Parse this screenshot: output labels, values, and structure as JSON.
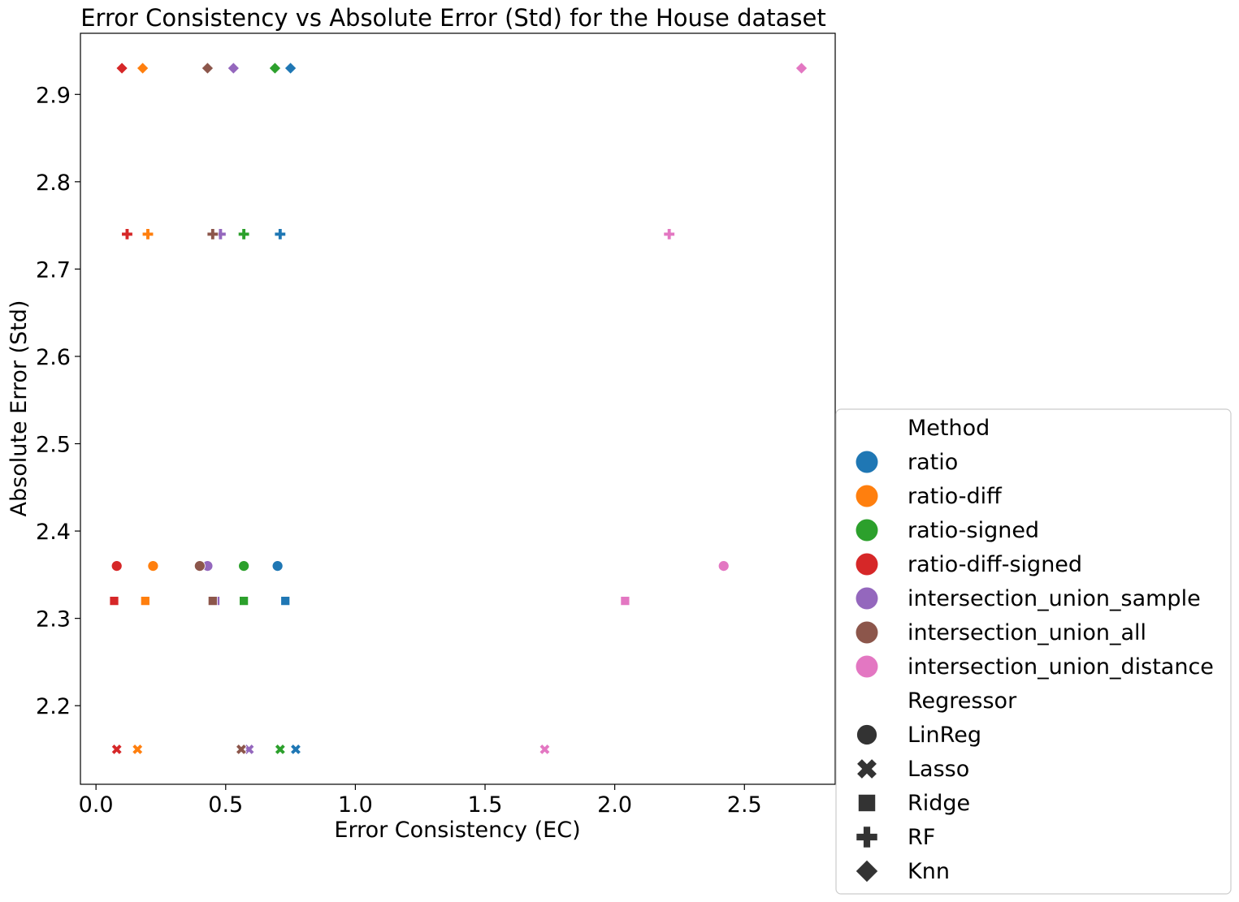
{
  "chart_data": {
    "type": "scatter",
    "title": "Error Consistency vs Absolute Error (Std) for the House dataset",
    "xlabel": "Error Consistency (EC)",
    "ylabel": "Absolute Error (Std)",
    "xlim": [
      -0.06,
      2.85
    ],
    "ylim": [
      2.11,
      2.97
    ],
    "xticks": [
      "0.0",
      "0.5",
      "1.0",
      "1.5",
      "2.0",
      "2.5"
    ],
    "yticks": [
      "2.2",
      "2.3",
      "2.4",
      "2.5",
      "2.6",
      "2.7",
      "2.8",
      "2.9"
    ],
    "grid": false,
    "legend_position": "outside-right-bottom",
    "legend": {
      "hue_title": "Method",
      "style_title": "Regressor"
    },
    "methods": [
      {
        "name": "ratio",
        "color": "#1f77b4"
      },
      {
        "name": "ratio-diff",
        "color": "#ff7f0e"
      },
      {
        "name": "ratio-signed",
        "color": "#2ca02c"
      },
      {
        "name": "ratio-diff-signed",
        "color": "#d62728"
      },
      {
        "name": "intersection_union_sample",
        "color": "#9467bd"
      },
      {
        "name": "intersection_union_all",
        "color": "#8c564b"
      },
      {
        "name": "intersection_union_distance",
        "color": "#e377c2"
      }
    ],
    "regressors": [
      {
        "name": "LinReg",
        "marker": "circle"
      },
      {
        "name": "Lasso",
        "marker": "x"
      },
      {
        "name": "Ridge",
        "marker": "square"
      },
      {
        "name": "RF",
        "marker": "plus"
      },
      {
        "name": "Knn",
        "marker": "diamond"
      }
    ],
    "points": [
      {
        "method": "ratio",
        "regressor": "LinReg",
        "x": 0.7,
        "y": 2.36
      },
      {
        "method": "ratio-diff",
        "regressor": "LinReg",
        "x": 0.22,
        "y": 2.36
      },
      {
        "method": "ratio-signed",
        "regressor": "LinReg",
        "x": 0.57,
        "y": 2.36
      },
      {
        "method": "ratio-diff-signed",
        "regressor": "LinReg",
        "x": 0.08,
        "y": 2.36
      },
      {
        "method": "intersection_union_sample",
        "regressor": "LinReg",
        "x": 0.43,
        "y": 2.36
      },
      {
        "method": "intersection_union_all",
        "regressor": "LinReg",
        "x": 0.4,
        "y": 2.36
      },
      {
        "method": "intersection_union_distance",
        "regressor": "LinReg",
        "x": 2.42,
        "y": 2.36
      },
      {
        "method": "ratio",
        "regressor": "Lasso",
        "x": 0.77,
        "y": 2.15
      },
      {
        "method": "ratio-diff",
        "regressor": "Lasso",
        "x": 0.16,
        "y": 2.15
      },
      {
        "method": "ratio-signed",
        "regressor": "Lasso",
        "x": 0.71,
        "y": 2.15
      },
      {
        "method": "ratio-diff-signed",
        "regressor": "Lasso",
        "x": 0.08,
        "y": 2.15
      },
      {
        "method": "intersection_union_sample",
        "regressor": "Lasso",
        "x": 0.59,
        "y": 2.15
      },
      {
        "method": "intersection_union_all",
        "regressor": "Lasso",
        "x": 0.56,
        "y": 2.15
      },
      {
        "method": "intersection_union_distance",
        "regressor": "Lasso",
        "x": 1.73,
        "y": 2.15
      },
      {
        "method": "ratio",
        "regressor": "Ridge",
        "x": 0.73,
        "y": 2.32
      },
      {
        "method": "ratio-diff",
        "regressor": "Ridge",
        "x": 0.19,
        "y": 2.32
      },
      {
        "method": "ratio-signed",
        "regressor": "Ridge",
        "x": 0.57,
        "y": 2.32
      },
      {
        "method": "ratio-diff-signed",
        "regressor": "Ridge",
        "x": 0.07,
        "y": 2.32
      },
      {
        "method": "intersection_union_sample",
        "regressor": "Ridge",
        "x": 0.46,
        "y": 2.32
      },
      {
        "method": "intersection_union_all",
        "regressor": "Ridge",
        "x": 0.45,
        "y": 2.32
      },
      {
        "method": "intersection_union_distance",
        "regressor": "Ridge",
        "x": 2.04,
        "y": 2.32
      },
      {
        "method": "ratio",
        "regressor": "RF",
        "x": 0.71,
        "y": 2.74
      },
      {
        "method": "ratio-diff",
        "regressor": "RF",
        "x": 0.2,
        "y": 2.74
      },
      {
        "method": "ratio-signed",
        "regressor": "RF",
        "x": 0.57,
        "y": 2.74
      },
      {
        "method": "ratio-diff-signed",
        "regressor": "RF",
        "x": 0.12,
        "y": 2.74
      },
      {
        "method": "intersection_union_sample",
        "regressor": "RF",
        "x": 0.48,
        "y": 2.74
      },
      {
        "method": "intersection_union_all",
        "regressor": "RF",
        "x": 0.45,
        "y": 2.74
      },
      {
        "method": "intersection_union_distance",
        "regressor": "RF",
        "x": 2.21,
        "y": 2.74
      },
      {
        "method": "ratio",
        "regressor": "Knn",
        "x": 0.75,
        "y": 2.93
      },
      {
        "method": "ratio-diff",
        "regressor": "Knn",
        "x": 0.18,
        "y": 2.93
      },
      {
        "method": "ratio-signed",
        "regressor": "Knn",
        "x": 0.69,
        "y": 2.93
      },
      {
        "method": "ratio-diff-signed",
        "regressor": "Knn",
        "x": 0.1,
        "y": 2.93
      },
      {
        "method": "intersection_union_sample",
        "regressor": "Knn",
        "x": 0.53,
        "y": 2.93
      },
      {
        "method": "intersection_union_all",
        "regressor": "Knn",
        "x": 0.43,
        "y": 2.93
      },
      {
        "method": "intersection_union_distance",
        "regressor": "Knn",
        "x": 2.72,
        "y": 2.93
      }
    ]
  }
}
